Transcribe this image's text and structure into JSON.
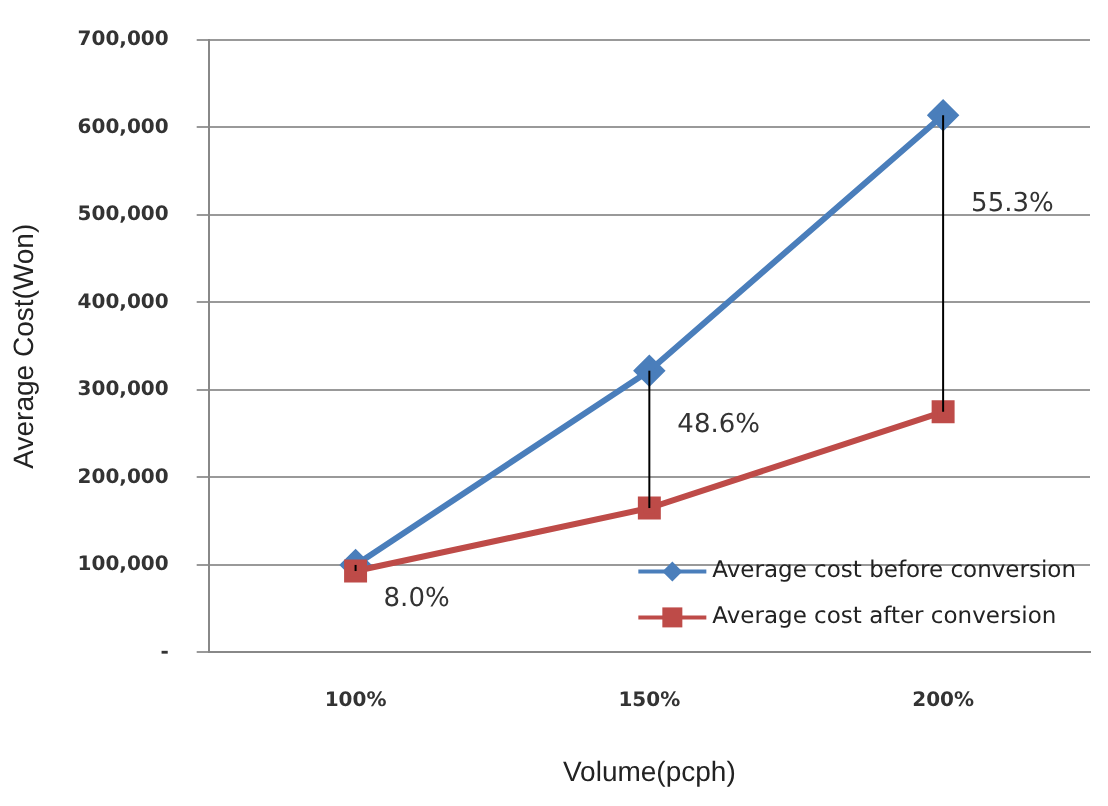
{
  "chart_data": {
    "type": "line",
    "xlabel": "Volume(pcph)",
    "ylabel": "Average Cost(Won)",
    "categories": [
      "100%",
      "150%",
      "200%"
    ],
    "series": [
      {
        "name": "Average cost before conversion",
        "color": "#4a7ebb",
        "values": [
          100000,
          322000,
          614000
        ],
        "marker": "diamond"
      },
      {
        "name": "Average cost after conversion",
        "color": "#be4b48",
        "values": [
          93000,
          165000,
          275000
        ],
        "marker": "square",
        "errors": [
          [
            93000,
            100000
          ],
          [
            165000,
            322000
          ],
          [
            275000,
            614000
          ]
        ]
      }
    ],
    "ylim": [
      0,
      700000
    ],
    "yticks": [
      {
        "value": 0,
        "label": "-"
      },
      {
        "value": 100000,
        "label": "100,000"
      },
      {
        "value": 200000,
        "label": "200,000"
      },
      {
        "value": 300000,
        "label": "300,000"
      },
      {
        "value": 400000,
        "label": "400,000"
      },
      {
        "value": 500000,
        "label": "500,000"
      },
      {
        "value": 600000,
        "label": "600,000"
      },
      {
        "value": 700000,
        "label": "700,000"
      }
    ],
    "grid": "y",
    "legend": "bottom right",
    "annotations": [
      "8.0%",
      "48.6%",
      "55.3%"
    ]
  }
}
